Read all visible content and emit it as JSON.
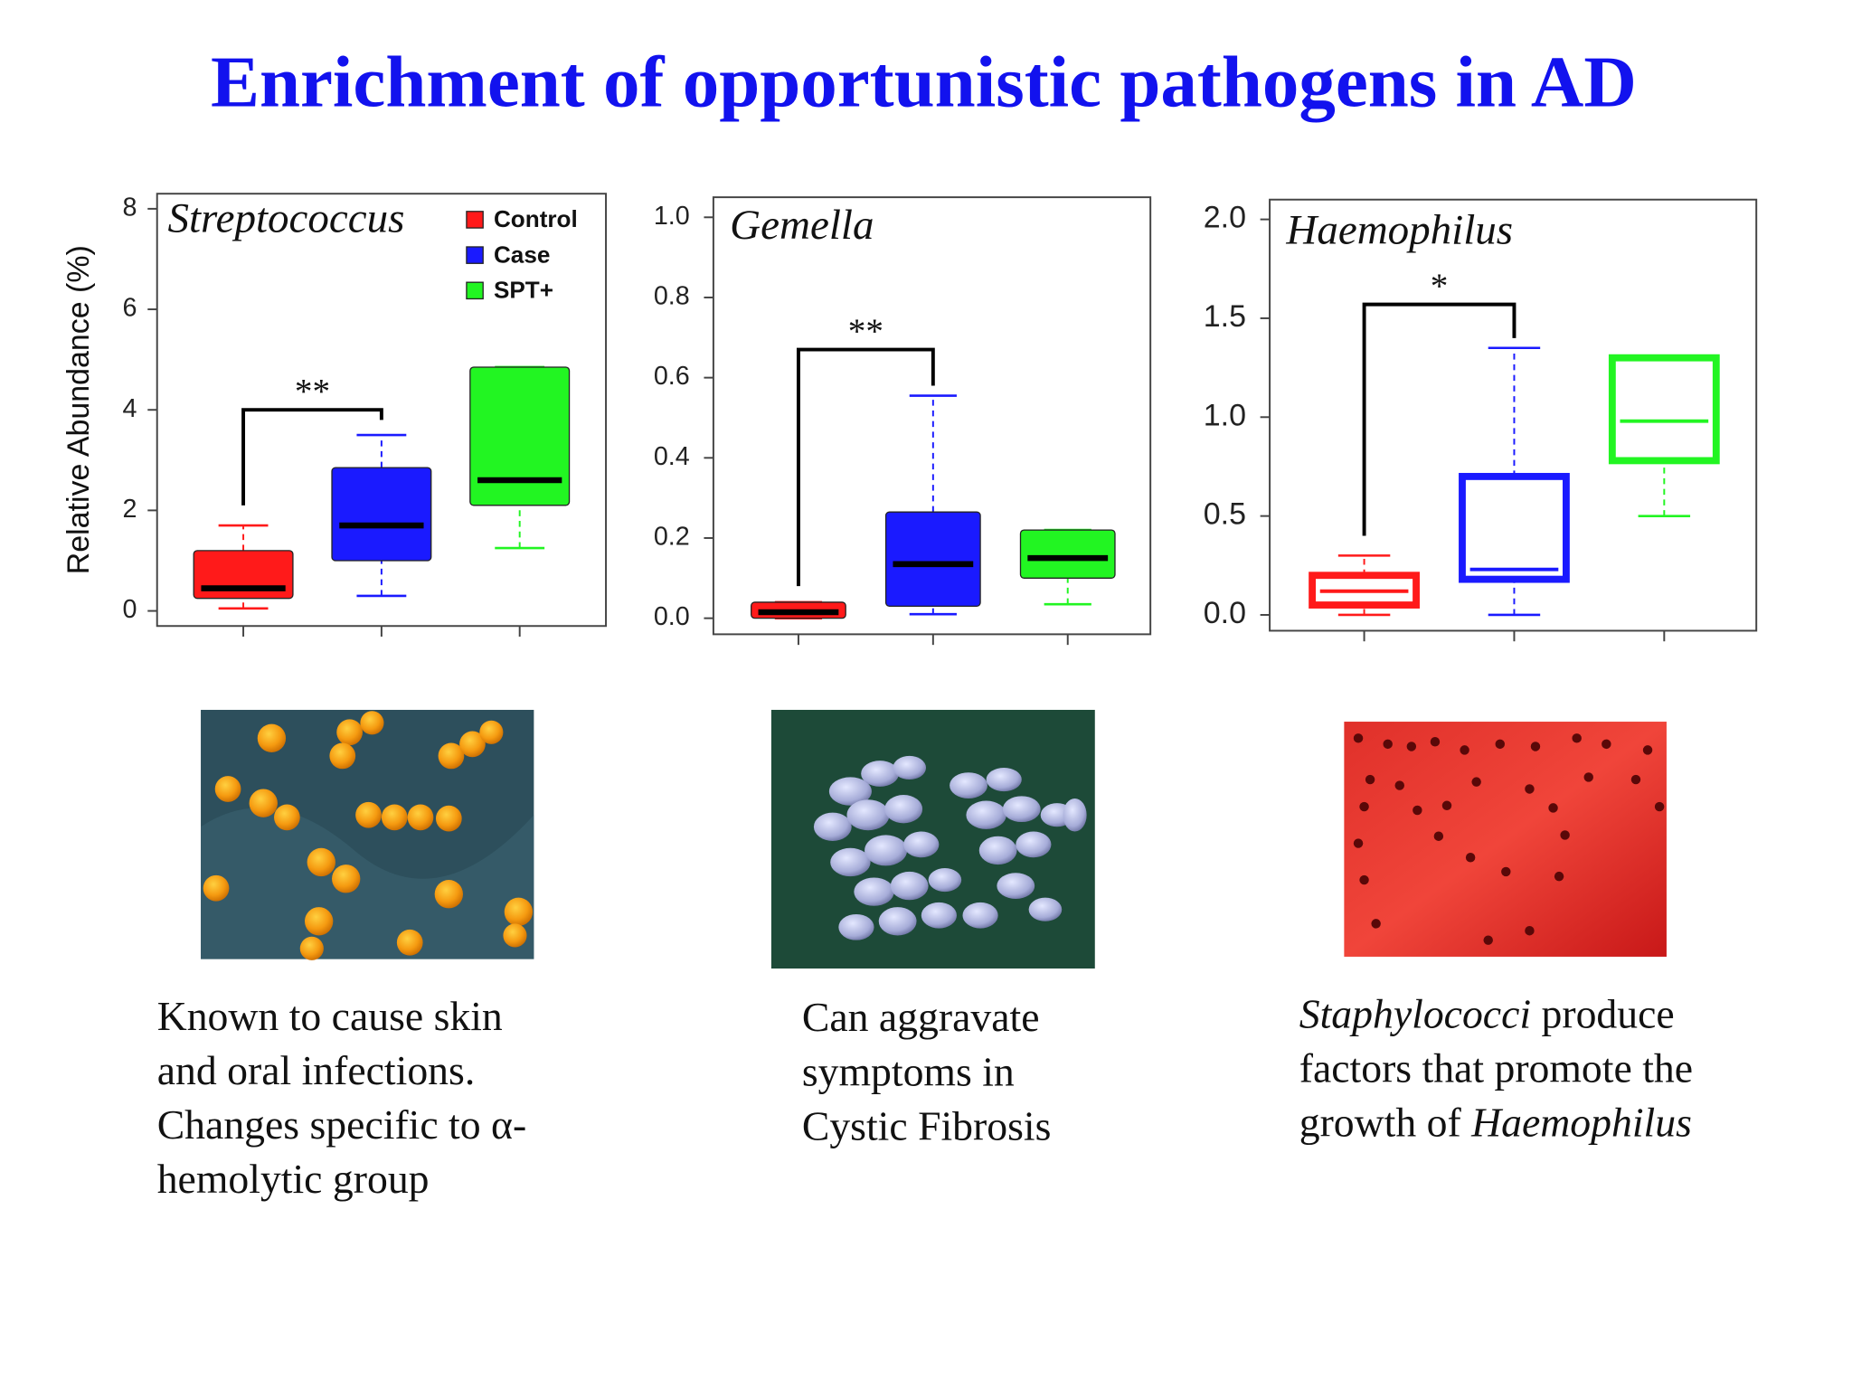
{
  "title": "Enrichment of opportunistic pathogens in AD",
  "chart_data": [
    {
      "type": "box",
      "title": "Streptococcus",
      "ylabel": "Relative  Abundance (%)",
      "ylim": [
        -0.3,
        8.3
      ],
      "yticks": [
        0,
        2,
        4,
        6,
        8
      ],
      "box_style": "filled",
      "legend": "top-right",
      "series": [
        {
          "name": "Control",
          "color": "#ff1a1a",
          "min": 0.05,
          "q1": 0.25,
          "median": 0.45,
          "q3": 1.2,
          "max": 1.7
        },
        {
          "name": "Case",
          "color": "#1a1aff",
          "min": 0.3,
          "q1": 1.0,
          "median": 1.7,
          "q3": 2.85,
          "max": 3.5
        },
        {
          "name": "SPT+",
          "color": "#22f522",
          "min": 1.25,
          "q1": 2.1,
          "median": 2.6,
          "q3": 4.85,
          "max": 4.85
        }
      ],
      "annotations": [
        {
          "text": "**",
          "between": [
            0,
            1
          ],
          "y": 4.0,
          "left_y": 2.1,
          "right_y": 3.8
        }
      ]
    },
    {
      "type": "box",
      "title": "Gemella",
      "ylim": [
        -0.04,
        1.05
      ],
      "yticks": [
        {
          "value": 0,
          "label": "0.0"
        },
        0.2,
        0.4,
        0.6,
        0.8,
        {
          "value": 1,
          "label": "1.0"
        }
      ],
      "box_style": "filled",
      "series": [
        {
          "color": "#ff1a1a",
          "min": 0,
          "q1": 0,
          "median": 0.015,
          "q3": 0.04,
          "max": 0.04
        },
        {
          "color": "#1a1aff",
          "min": 0.01,
          "q1": 0.03,
          "median": 0.135,
          "q3": 0.265,
          "max": 0.555
        },
        {
          "color": "#22f522",
          "min": 0.035,
          "q1": 0.1,
          "median": 0.15,
          "q3": 0.22,
          "max": 0.22
        }
      ],
      "annotations": [
        {
          "text": "**",
          "between": [
            0,
            1
          ],
          "y": 0.67,
          "left_y": 0.08,
          "right_y": 0.58
        }
      ]
    },
    {
      "type": "box",
      "title": "Haemophilus",
      "ylim": [
        -0.08,
        2.1
      ],
      "yticks": [
        {
          "value": 0,
          "label": "0.0"
        },
        0.5,
        {
          "value": 1,
          "label": "1.0"
        },
        1.5,
        {
          "value": 2,
          "label": "2.0"
        }
      ],
      "box_style": "outline",
      "series": [
        {
          "color": "#ff1a1a",
          "min": 0,
          "q1": 0.05,
          "median": 0.12,
          "q3": 0.2,
          "max": 0.3
        },
        {
          "color": "#1a1aff",
          "min": 0,
          "q1": 0.18,
          "median": 0.23,
          "q3": 0.7,
          "max": 1.35
        },
        {
          "color": "#22f522",
          "min": 0.5,
          "q1": 0.78,
          "median": 0.98,
          "q3": 1.3,
          "max": 1.3
        }
      ],
      "annotations": [
        {
          "text": "*",
          "between": [
            0,
            1
          ],
          "y": 1.57,
          "left_y": 0.4,
          "right_y": 1.4
        }
      ]
    }
  ],
  "captions": [
    [
      [
        {
          "text": "Known to cause skin"
        }
      ],
      [
        {
          "text": "and oral infections."
        }
      ],
      [
        {
          "text": "Changes specific to α-"
        }
      ],
      [
        {
          "text": "hemolytic group"
        }
      ]
    ],
    [
      [
        {
          "text": "Can aggravate"
        }
      ],
      [
        {
          "text": "symptoms in"
        }
      ],
      [
        {
          "text": "Cystic Fibrosis"
        }
      ]
    ],
    [
      [
        {
          "text": "Staphylococci",
          "italic": true
        },
        {
          "text": " produce"
        }
      ],
      [
        {
          "text": "factors that promote the"
        }
      ],
      [
        {
          "text": "growth of "
        },
        {
          "text": "Haemophilus",
          "italic": true
        }
      ]
    ]
  ]
}
